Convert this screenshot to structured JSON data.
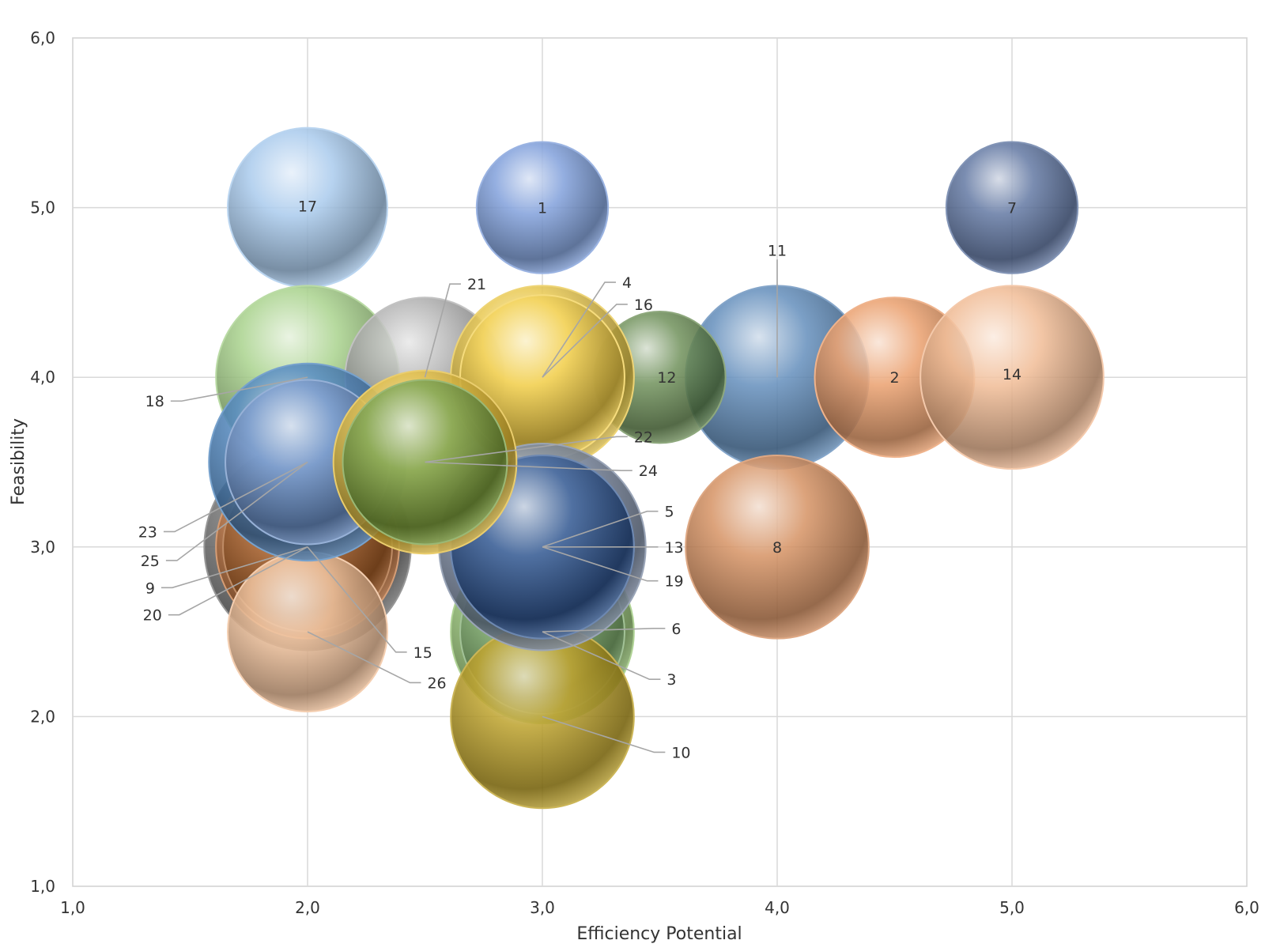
{
  "chart_data": {
    "type": "scatter",
    "variant": "bubble",
    "title": "",
    "xlabel": "Efficiency Potential",
    "ylabel": "Feasibility",
    "xlim": [
      1.0,
      6.0
    ],
    "ylim": [
      1.0,
      6.0
    ],
    "x_ticks": [
      "1,0",
      "2,0",
      "3,0",
      "4,0",
      "5,0",
      "6,0"
    ],
    "y_ticks": [
      "1,0",
      "2,0",
      "3,0",
      "4,0",
      "5,0",
      "6,0"
    ],
    "grid": true,
    "legend": "none",
    "bubble_size_unit": "relative radius",
    "points": [
      {
        "label": "1",
        "x": 3.0,
        "y": 5.0,
        "size": 0.56,
        "color": "#6f93d6",
        "label_x": 3.0,
        "label_y": 5.0
      },
      {
        "label": "2",
        "x": 4.5,
        "y": 4.0,
        "size": 0.68,
        "color": "#e8935a",
        "label_x": 4.5,
        "label_y": 4.0
      },
      {
        "label": "3",
        "x": 3.0,
        "y": 2.5,
        "size": 0.78,
        "color": "#8dbf68",
        "label_x": 3.53,
        "label_y": 2.22
      },
      {
        "label": "4",
        "x": 3.0,
        "y": 4.0,
        "size": 0.78,
        "color": "#e6c23a",
        "label_x": 3.34,
        "label_y": 4.56
      },
      {
        "label": "5",
        "x": 3.0,
        "y": 3.0,
        "size": 0.88,
        "color": "#6e7e99",
        "label_x": 3.52,
        "label_y": 3.21
      },
      {
        "label": "6",
        "x": 3.0,
        "y": 2.5,
        "size": 0.7,
        "color": "#7aa86a",
        "label_x": 3.55,
        "label_y": 2.52
      },
      {
        "label": "7",
        "x": 5.0,
        "y": 5.0,
        "size": 0.56,
        "color": "#4d6696",
        "label_x": 5.0,
        "label_y": 5.0
      },
      {
        "label": "8",
        "x": 4.0,
        "y": 3.0,
        "size": 0.78,
        "color": "#d0834f",
        "label_x": 4.0,
        "label_y": 3.0
      },
      {
        "label": "9",
        "x": 2.0,
        "y": 3.0,
        "size": 0.88,
        "color": "#6b6b6b",
        "label_x": 1.35,
        "label_y": 2.76
      },
      {
        "label": "10",
        "x": 3.0,
        "y": 2.0,
        "size": 0.78,
        "color": "#b4950f",
        "label_x": 3.55,
        "label_y": 1.79
      },
      {
        "label": "11",
        "x": 4.0,
        "y": 4.0,
        "size": 0.78,
        "color": "#4f7fb2",
        "label_x": 4.0,
        "label_y": 4.75
      },
      {
        "label": "12",
        "x": 3.5,
        "y": 4.0,
        "size": 0.56,
        "color": "#5d8245",
        "label_x": 3.53,
        "label_y": 4.0
      },
      {
        "label": "13",
        "x": 3.0,
        "y": 3.0,
        "size": 0.78,
        "color": "#3b5f9e",
        "label_x": 3.52,
        "label_y": 3.0
      },
      {
        "label": "14",
        "x": 5.0,
        "y": 4.0,
        "size": 0.78,
        "color": "#efb287",
        "label_x": 5.0,
        "label_y": 4.02
      },
      {
        "label": "15",
        "x": 2.0,
        "y": 3.0,
        "size": 0.78,
        "color": "#c5733a",
        "label_x": 2.45,
        "label_y": 2.38
      },
      {
        "label": "16",
        "x": 3.0,
        "y": 4.0,
        "size": 0.7,
        "color": "#f2cd45",
        "label_x": 3.39,
        "label_y": 4.43
      },
      {
        "label": "17",
        "x": 2.0,
        "y": 5.0,
        "size": 0.68,
        "color": "#9dc3ea",
        "label_x": 2.0,
        "label_y": 5.01
      },
      {
        "label": "18",
        "x": 2.0,
        "y": 4.0,
        "size": 0.78,
        "color": "#9dcc7e",
        "label_x": 1.39,
        "label_y": 3.86
      },
      {
        "label": "19",
        "x": 3.0,
        "y": 3.0,
        "size": 0.78,
        "color": "#2f558f",
        "label_x": 3.52,
        "label_y": 2.8
      },
      {
        "label": "20",
        "x": 2.0,
        "y": 3.0,
        "size": 0.72,
        "color": "#a35a24",
        "label_x": 1.38,
        "label_y": 2.6
      },
      {
        "label": "21",
        "x": 2.5,
        "y": 4.0,
        "size": 0.68,
        "color": "#a8a8a8",
        "label_x": 2.68,
        "label_y": 4.55
      },
      {
        "label": "22",
        "x": 2.5,
        "y": 3.5,
        "size": 0.78,
        "color": "#e1b82e",
        "label_x": 3.39,
        "label_y": 3.65
      },
      {
        "label": "23",
        "x": 2.0,
        "y": 3.5,
        "size": 0.84,
        "color": "#3d7ab8",
        "label_x": 1.36,
        "label_y": 3.09
      },
      {
        "label": "24",
        "x": 2.5,
        "y": 3.5,
        "size": 0.7,
        "color": "#6f9a3a",
        "label_x": 3.41,
        "label_y": 3.45
      },
      {
        "label": "25",
        "x": 2.0,
        "y": 3.5,
        "size": 0.7,
        "color": "#6b8fc6",
        "label_x": 1.37,
        "label_y": 2.92
      },
      {
        "label": "26",
        "x": 2.0,
        "y": 2.5,
        "size": 0.68,
        "color": "#efb98e",
        "label_x": 2.51,
        "label_y": 2.2
      }
    ],
    "draw_order": [
      "17",
      "1",
      "7",
      "18",
      "21",
      "11",
      "2",
      "14",
      "12",
      "4",
      "16",
      "8",
      "9",
      "15",
      "20",
      "26",
      "23",
      "25",
      "3",
      "6",
      "10",
      "5",
      "13",
      "19",
      "22",
      "24"
    ]
  }
}
